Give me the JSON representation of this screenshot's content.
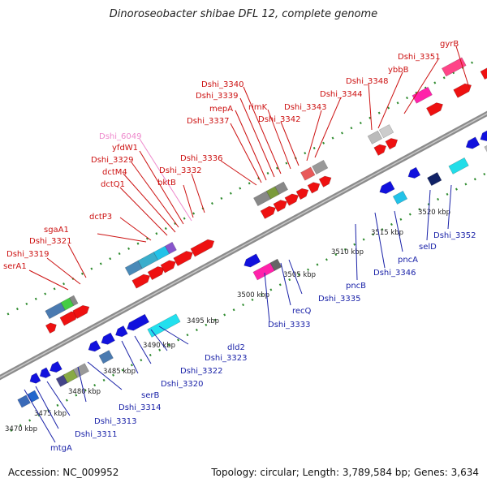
{
  "title": "Dinoroseobacter shibae DFL 12, complete genome",
  "footer": {
    "accession": "Accession: NC_009952",
    "meta": "Topology: circular; Length: 3,789,584 bp; Genes: 3,634"
  },
  "colors": {
    "forward_label": "#cc1111",
    "reverse_label": "#1a22a8",
    "rna_label": "#ee88cc",
    "forward_gene": "#ee1111",
    "reverse_gene": "#1111dd",
    "backbone": "#8c8c8c",
    "dotted": "#2e8b2e"
  },
  "scale": {
    "ticks": [
      {
        "label": "3470 kbp"
      },
      {
        "label": "3475 kbp"
      },
      {
        "label": "3480 kbp"
      },
      {
        "label": "3485 kbp"
      },
      {
        "label": "3490 kbp"
      },
      {
        "label": "3495 kbp"
      },
      {
        "label": "3500 kbp"
      },
      {
        "label": "3505 kbp"
      },
      {
        "label": "3510 kbp"
      },
      {
        "label": "3515 kbp"
      },
      {
        "label": "3520 kbp"
      }
    ]
  },
  "forward_labels": [
    {
      "text": "serA1"
    },
    {
      "text": "Dshi_3319"
    },
    {
      "text": "Dshi_3321"
    },
    {
      "text": "sgaA1"
    },
    {
      "text": "dctP3"
    },
    {
      "text": "dctQ1"
    },
    {
      "text": "dctM4"
    },
    {
      "text": "Dshi_3329"
    },
    {
      "text": "yfdW1"
    },
    {
      "text": "Dshi_6049",
      "rna": true
    },
    {
      "text": "bktB"
    },
    {
      "text": "Dshi_3332"
    },
    {
      "text": "Dshi_3336"
    },
    {
      "text": "Dshi_3337"
    },
    {
      "text": "mepA"
    },
    {
      "text": "Dshi_3339"
    },
    {
      "text": "Dshi_3340"
    },
    {
      "text": "rimK"
    },
    {
      "text": "Dshi_3342"
    },
    {
      "text": "Dshi_3343"
    },
    {
      "text": "Dshi_3344"
    },
    {
      "text": "Dshi_3348"
    },
    {
      "text": "ybbB"
    },
    {
      "text": "Dshi_3351"
    },
    {
      "text": "gyrB"
    }
  ],
  "reverse_labels": [
    {
      "text": "mtgA"
    },
    {
      "text": "Dshi_3311"
    },
    {
      "text": "Dshi_3313"
    },
    {
      "text": "Dshi_3314"
    },
    {
      "text": "serB"
    },
    {
      "text": "Dshi_3320"
    },
    {
      "text": "Dshi_3322"
    },
    {
      "text": "Dshi_3323"
    },
    {
      "text": "dld2"
    },
    {
      "text": "Dshi_3333"
    },
    {
      "text": "recQ"
    },
    {
      "text": "Dshi_3335"
    },
    {
      "text": "pncB"
    },
    {
      "text": "Dshi_3346"
    },
    {
      "text": "pncA"
    },
    {
      "text": "selD"
    },
    {
      "text": "Dshi_3352"
    }
  ]
}
